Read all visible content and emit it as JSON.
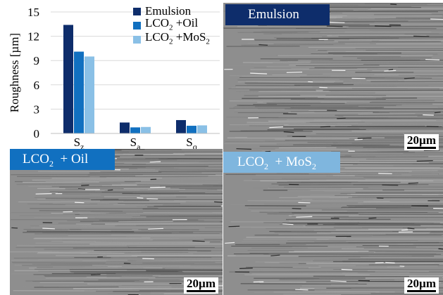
{
  "chart_data": {
    "type": "bar",
    "ylabel": "Roughness [µm]",
    "ylim": [
      0,
      15
    ],
    "yticks": [
      "0",
      "3",
      "6",
      "9",
      "12",
      "15"
    ],
    "categories": [
      {
        "base": "S",
        "sub": "z"
      },
      {
        "base": "S",
        "sub": "a"
      },
      {
        "base": "S",
        "sub": "q"
      }
    ],
    "series": [
      {
        "name": "Emulsion",
        "color": "#0e2d6b",
        "values": [
          13.4,
          1.35,
          1.65
        ]
      },
      {
        "name": "LCO₂ +Oil",
        "name_base": "LCO",
        "name_sub": "2",
        "name_rest": " +Oil",
        "color": "#1170c0",
        "values": [
          10.1,
          0.75,
          0.95
        ]
      },
      {
        "name": "LCO₂ +MoS₂",
        "name_base": "LCO",
        "name_sub": "2",
        "name_rest": " +MoS",
        "name_sub2": "2",
        "color": "#8ac0e6",
        "values": [
          9.5,
          0.8,
          1.0
        ]
      }
    ],
    "grid": true,
    "legend": "top-right"
  },
  "panels": {
    "emulsion": {
      "label": "Emulsion",
      "scale": "20µm"
    },
    "oil": {
      "label_base": "LCO",
      "label_sub": "2",
      "label_rest": "  + Oil",
      "scale": "20µm"
    },
    "mos2": {
      "label_base": "LCO",
      "label_sub": "2",
      "label_rest": "  + MoS",
      "label_sub2": "2"
    }
  }
}
